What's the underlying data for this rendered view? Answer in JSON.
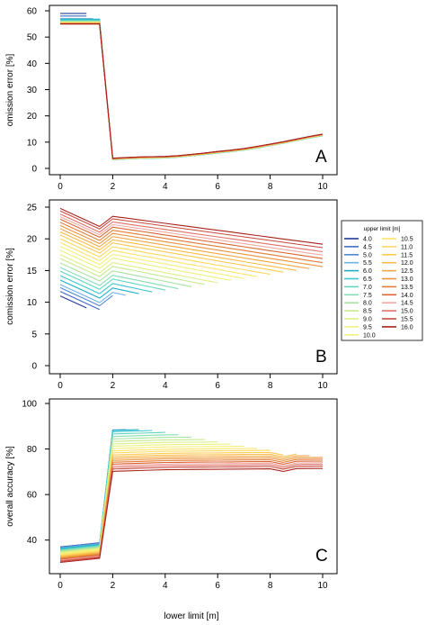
{
  "figure": {
    "xlabel": "lower limit [m]",
    "legend_title": "upper limit [m]"
  },
  "colors": {
    "4.0": "#1f3b96",
    "4.5": "#3e6bc4",
    "5.0": "#4f87d2",
    "5.5": "#6cb1e6",
    "6.0": "#1aaec6",
    "6.5": "#39c7cc",
    "7.0": "#60d6c2",
    "7.5": "#86ddb4",
    "8.0": "#a8e3a0",
    "8.5": "#c6ea8e",
    "9.0": "#dcef84",
    "9.5": "#ecf27e",
    "10.0": "#f6ef78",
    "10.5": "#fbe56c",
    "11.0": "#fcd95e",
    "11.5": "#fccb52",
    "12.0": "#f9bb48",
    "12.5": "#f3a742",
    "13.0": "#ec923d",
    "13.5": "#e47c38",
    "14.0": "#da6634",
    "14.5": "#f0a9a4",
    "15.0": "#e0706a",
    "15.5": "#c8493f",
    "16.0": "#a8221c"
  },
  "chart_data": [
    {
      "type": "line",
      "panel": "A",
      "ylabel": "omission error [%]",
      "xlim": [
        0,
        10
      ],
      "ylim": [
        0,
        60
      ],
      "xticks": [
        0,
        2,
        4,
        6,
        8,
        10
      ],
      "yticks": [
        0,
        10,
        20,
        30,
        40,
        50,
        60
      ],
      "uppers": [
        4.0,
        4.5,
        5.0,
        5.5,
        6.0,
        6.5,
        7.0,
        7.5,
        8.0,
        8.5,
        9.0,
        9.5,
        10.0,
        10.5,
        11.0,
        11.5,
        12.0,
        12.5,
        13.0,
        13.5,
        14.0,
        14.5,
        15.0,
        15.5,
        16.0
      ],
      "low_values": [
        59,
        58,
        57,
        57,
        56.8,
        56.5,
        56.3,
        56.0,
        55.9,
        55.8,
        55.7,
        55.6,
        55.5,
        55.4,
        55.4,
        55.3,
        55.3,
        55.2,
        55.2,
        55.1,
        55.1,
        55.0,
        55.0,
        55.0,
        55.0
      ],
      "high_x": [
        2,
        2.5,
        3,
        3.5,
        4,
        4.5,
        5,
        5.5,
        6,
        6.5,
        7,
        7.5,
        8,
        8.5,
        9,
        9.5,
        10
      ],
      "high_y": [
        3.5,
        3.8,
        4.0,
        4.1,
        4.2,
        4.5,
        5.0,
        5.5,
        6.1,
        6.6,
        7.2,
        8.0,
        8.9,
        9.8,
        10.8,
        11.8,
        12.7
      ]
    },
    {
      "type": "line",
      "panel": "B",
      "ylabel": "comission error [%]",
      "xlim": [
        0,
        10
      ],
      "ylim": [
        0,
        25
      ],
      "xticks": [
        0,
        2,
        4,
        6,
        8,
        10
      ],
      "yticks": [
        0,
        5,
        10,
        15,
        20,
        25
      ],
      "series": [
        {
          "name": "4.0",
          "start": 11.0
        },
        {
          "name": "4.5",
          "start": 11.7
        },
        {
          "name": "5.0",
          "start": 12.3
        },
        {
          "name": "5.5",
          "start": 12.8
        },
        {
          "name": "6.0",
          "start": 13.5
        },
        {
          "name": "6.5",
          "start": 14.2
        },
        {
          "name": "7.0",
          "start": 14.9
        },
        {
          "name": "7.5",
          "start": 15.5
        },
        {
          "name": "8.0",
          "start": 16.2
        },
        {
          "name": "8.5",
          "start": 16.9
        },
        {
          "name": "9.0",
          "start": 17.5
        },
        {
          "name": "9.5",
          "start": 18.2
        },
        {
          "name": "10.0",
          "start": 18.8
        },
        {
          "name": "10.5",
          "start": 19.4
        },
        {
          "name": "11.0",
          "start": 20.0
        },
        {
          "name": "11.5",
          "start": 20.6
        },
        {
          "name": "12.0",
          "start": 21.1
        },
        {
          "name": "12.5",
          "start": 21.6
        },
        {
          "name": "13.0",
          "start": 22.1
        },
        {
          "name": "13.5",
          "start": 22.6
        },
        {
          "name": "14.0",
          "start": 23.1
        },
        {
          "name": "14.5",
          "start": 23.5
        },
        {
          "name": "15.0",
          "start": 23.9
        },
        {
          "name": "15.5",
          "start": 24.4
        },
        {
          "name": "16.0",
          "start": 24.8
        }
      ]
    },
    {
      "type": "line",
      "panel": "C",
      "ylabel": "overall accuracy [%]",
      "xlim": [
        0,
        10
      ],
      "ylim": [
        30,
        100
      ],
      "xticks": [
        0,
        2,
        4,
        6,
        8,
        10
      ],
      "yticks": [
        40,
        60,
        80,
        100
      ],
      "series": [
        {
          "name": "4.0",
          "low": 37.0,
          "plateau": 87.0
        },
        {
          "name": "4.5",
          "low": 37.0,
          "plateau": 87.5
        },
        {
          "name": "5.0",
          "low": 36.8,
          "plateau": 88.0
        },
        {
          "name": "5.5",
          "low": 36.6,
          "plateau": 88.4
        },
        {
          "name": "6.0",
          "low": 36.3,
          "plateau": 88.2
        },
        {
          "name": "6.5",
          "low": 36.0,
          "plateau": 87.6
        },
        {
          "name": "7.0",
          "low": 35.7,
          "plateau": 86.6
        },
        {
          "name": "7.5",
          "low": 35.4,
          "plateau": 85.5
        },
        {
          "name": "8.0",
          "low": 35.1,
          "plateau": 84.4
        },
        {
          "name": "8.5",
          "low": 34.8,
          "plateau": 83.3
        },
        {
          "name": "9.0",
          "low": 34.5,
          "plateau": 82.2
        },
        {
          "name": "9.5",
          "low": 34.2,
          "plateau": 81.2
        },
        {
          "name": "10.0",
          "low": 33.9,
          "plateau": 80.2
        },
        {
          "name": "10.5",
          "low": 33.6,
          "plateau": 79.2
        },
        {
          "name": "11.0",
          "low": 33.3,
          "plateau": 78.3
        },
        {
          "name": "11.5",
          "low": 33.0,
          "plateau": 77.4
        },
        {
          "name": "12.0",
          "low": 32.7,
          "plateau": 76.6
        },
        {
          "name": "12.5",
          "low": 32.4,
          "plateau": 75.8
        },
        {
          "name": "13.0",
          "low": 32.1,
          "plateau": 75.0
        },
        {
          "name": "13.5",
          "low": 31.8,
          "plateau": 74.2
        },
        {
          "name": "14.0",
          "low": 31.5,
          "plateau": 73.4
        },
        {
          "name": "14.5",
          "low": 31.2,
          "plateau": 72.7
        },
        {
          "name": "15.0",
          "low": 30.9,
          "plateau": 72.0
        },
        {
          "name": "15.5",
          "low": 30.6,
          "plateau": 71.2
        },
        {
          "name": "16.0",
          "low": 30.2,
          "plateau": 70.2
        }
      ]
    }
  ]
}
